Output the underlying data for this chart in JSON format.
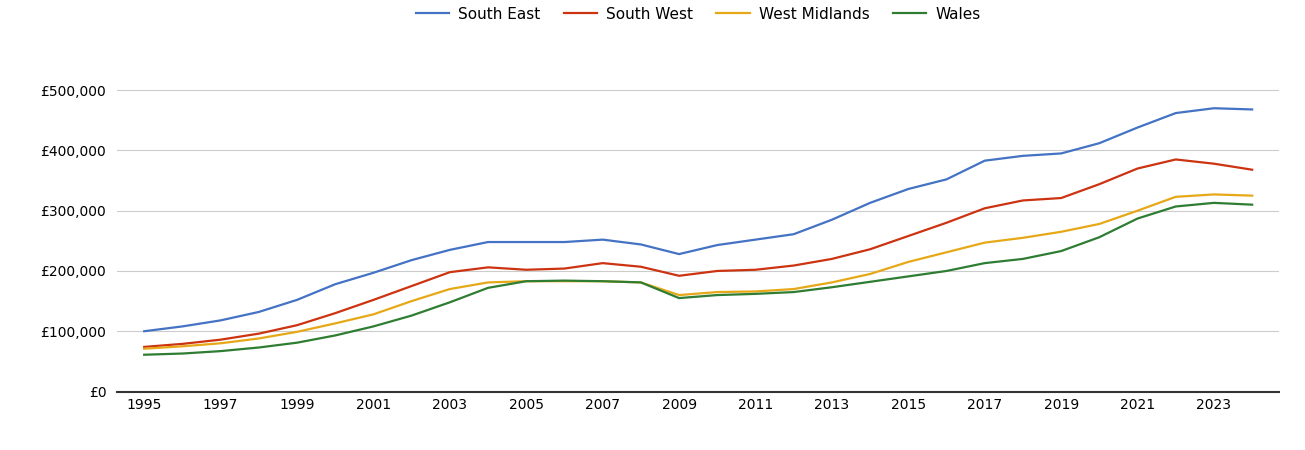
{
  "legend_labels": [
    "South East",
    "South West",
    "West Midlands",
    "Wales"
  ],
  "colors": {
    "South East": "#4472c4",
    "South West": "#cc3311",
    "West Midlands": "#e6a817",
    "Wales": "#2e7d32"
  },
  "years": [
    1995,
    1996,
    1997,
    1998,
    1999,
    2000,
    2001,
    2002,
    2003,
    2004,
    2005,
    2006,
    2007,
    2008,
    2009,
    2010,
    2011,
    2012,
    2013,
    2014,
    2015,
    2016,
    2017,
    2018,
    2019,
    2020,
    2021,
    2022,
    2023,
    2024
  ],
  "South East": [
    100000,
    108000,
    118000,
    132000,
    152000,
    178000,
    197000,
    218000,
    235000,
    248000,
    248000,
    248000,
    252000,
    244000,
    228000,
    243000,
    252000,
    261000,
    285000,
    313000,
    336000,
    352000,
    383000,
    391000,
    395000,
    412000,
    438000,
    462000,
    470000,
    468000
  ],
  "South West": [
    74000,
    79000,
    86000,
    96000,
    110000,
    130000,
    152000,
    175000,
    198000,
    206000,
    202000,
    204000,
    213000,
    207000,
    192000,
    200000,
    202000,
    209000,
    220000,
    236000,
    258000,
    280000,
    304000,
    317000,
    321000,
    344000,
    370000,
    385000,
    378000,
    368000
  ],
  "West Midlands": [
    71000,
    75000,
    80000,
    88000,
    99000,
    113000,
    128000,
    150000,
    170000,
    181000,
    183000,
    183000,
    183000,
    181000,
    160000,
    165000,
    166000,
    170000,
    181000,
    195000,
    215000,
    231000,
    247000,
    255000,
    265000,
    278000,
    300000,
    323000,
    327000,
    325000
  ],
  "Wales": [
    61000,
    63000,
    67000,
    73000,
    81000,
    93000,
    108000,
    126000,
    148000,
    172000,
    183000,
    184000,
    183000,
    181000,
    155000,
    160000,
    162000,
    165000,
    173000,
    182000,
    191000,
    200000,
    213000,
    220000,
    233000,
    256000,
    287000,
    307000,
    313000,
    310000
  ],
  "ylim": [
    0,
    560000
  ],
  "yticks": [
    0,
    100000,
    200000,
    300000,
    400000,
    500000
  ],
  "xlim_min": 1994.3,
  "xlim_max": 2024.7,
  "background_color": "#ffffff",
  "grid_color": "#cccccc"
}
